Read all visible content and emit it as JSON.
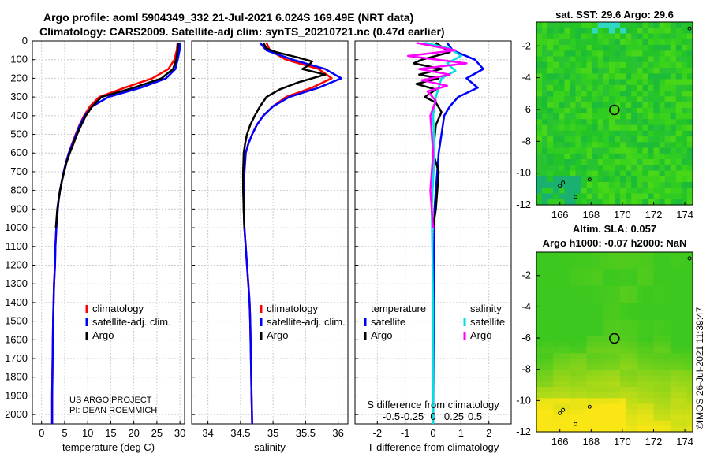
{
  "figure": {
    "title_line1": "Argo profile: aoml 5904349_332 21-Jul-2021 6.024S 169.49E (NRT data)",
    "title_line2": "Climatology: CARS2009. Satellite-adj clim: synTS_20210721.nc (0.47d earlier)",
    "project_line1": "US ARGO PROJECT",
    "project_line2": "PI: DEAN ROEMMICH",
    "imos_stamp": "©IMOS 26-Jul-2021 11:39:47"
  },
  "colors": {
    "climatology": "#ff0000",
    "satellite": "#0000ff",
    "argo": "#000000",
    "sal_argo": "#ff00ff",
    "sal_sat": "#00e0e0",
    "grid": "#cccccc"
  },
  "chart_data": [
    {
      "type": "line",
      "id": "temperature",
      "xlabel": "temperature (deg C)",
      "ylabel": "",
      "xlim": [
        -2,
        31
      ],
      "ylim": [
        0,
        2050
      ],
      "xticks": [
        0,
        5,
        10,
        15,
        20,
        25,
        30
      ],
      "xtick_labels": [
        "0",
        "5",
        "10",
        "15",
        "20",
        "25",
        "30"
      ],
      "yticks": [
        0,
        100,
        200,
        300,
        400,
        500,
        600,
        700,
        800,
        900,
        1000,
        1100,
        1200,
        1300,
        1400,
        1500,
        1600,
        1700,
        1800,
        1900,
        2000
      ],
      "ytick_labels": [
        "0",
        "100",
        "200",
        "300",
        "400",
        "500",
        "600",
        "700",
        "800",
        "900",
        "1000",
        "1100",
        "1200",
        "1300",
        "1400",
        "1500",
        "1600",
        "1700",
        "1800",
        "1900",
        "2000"
      ],
      "legend": [
        "climatology",
        "satellite-adj. clim.",
        "Argo"
      ],
      "series": [
        {
          "name": "climatology",
          "color": "#ff0000",
          "x": [
            29.5,
            29.3,
            28.8,
            27.5,
            24.0,
            18.0,
            12.5,
            10.5,
            9.2,
            8.2,
            7.4,
            6.6,
            5.9,
            5.3,
            4.8,
            4.4,
            4.0,
            3.7,
            3.5,
            3.2,
            3.0,
            2.9,
            2.7,
            2.6,
            2.5,
            2.4,
            2.3,
            2.3
          ],
          "y": [
            10,
            50,
            100,
            150,
            200,
            250,
            300,
            350,
            400,
            450,
            500,
            550,
            600,
            650,
            700,
            750,
            800,
            850,
            900,
            1000,
            1100,
            1200,
            1300,
            1400,
            1500,
            1700,
            1900,
            2050
          ]
        },
        {
          "name": "satellite-adj. clim.",
          "color": "#0000ff",
          "x": [
            30.0,
            29.9,
            29.5,
            29.0,
            27.0,
            21.5,
            14.5,
            11.0,
            9.4,
            8.3,
            7.5,
            6.7,
            5.9,
            5.3,
            4.8,
            4.4,
            4.0,
            3.7,
            3.5,
            3.2,
            3.0,
            2.9,
            2.7,
            2.6,
            2.5,
            2.4,
            2.3,
            2.3
          ],
          "y": [
            10,
            50,
            100,
            150,
            200,
            250,
            300,
            350,
            400,
            450,
            500,
            550,
            600,
            650,
            700,
            750,
            800,
            850,
            900,
            1000,
            1100,
            1200,
            1300,
            1400,
            1500,
            1700,
            1900,
            2050
          ]
        },
        {
          "name": "Argo",
          "color": "#000000",
          "x": [
            29.6,
            29.5,
            29.2,
            28.5,
            26.0,
            20.0,
            13.0,
            11.0,
            9.6,
            8.6,
            7.7,
            6.9,
            6.1,
            5.4,
            4.9,
            4.4,
            4.0,
            3.7,
            3.4,
            3.1
          ],
          "y": [
            10,
            50,
            100,
            150,
            200,
            250,
            300,
            350,
            400,
            450,
            500,
            550,
            600,
            650,
            700,
            750,
            800,
            850,
            900,
            1000
          ]
        }
      ]
    },
    {
      "type": "line",
      "id": "salinity",
      "xlabel": "salinity",
      "xlim": [
        33.75,
        36.15
      ],
      "ylim": [
        0,
        2050
      ],
      "xticks": [
        34,
        34.5,
        35,
        35.5,
        36
      ],
      "xtick_labels": [
        "34",
        "34.5",
        "35",
        "35.5",
        "36"
      ],
      "legend": [
        "climatology",
        "satellite-adj. clim.",
        "Argo"
      ],
      "series": [
        {
          "name": "climatology",
          "color": "#ff0000",
          "x": [
            34.9,
            34.95,
            35.2,
            35.7,
            35.9,
            35.6,
            35.2,
            35.0,
            34.85,
            34.75,
            34.68,
            34.62,
            34.58,
            34.56,
            34.55,
            34.55,
            34.56,
            34.58,
            34.6,
            34.62,
            34.64,
            34.65,
            34.66,
            34.67,
            34.68
          ],
          "y": [
            10,
            50,
            100,
            150,
            200,
            250,
            300,
            350,
            400,
            450,
            500,
            550,
            600,
            700,
            800,
            900,
            1000,
            1100,
            1200,
            1300,
            1400,
            1500,
            1700,
            1900,
            2050
          ]
        },
        {
          "name": "satellite-adj. clim.",
          "color": "#0000ff",
          "x": [
            34.8,
            34.9,
            35.3,
            35.8,
            36.05,
            35.7,
            35.25,
            35.0,
            34.85,
            34.75,
            34.68,
            34.62,
            34.58,
            34.56,
            34.55,
            34.55,
            34.56,
            34.58,
            34.6,
            34.62,
            34.64,
            34.65,
            34.66,
            34.67,
            34.68
          ],
          "y": [
            10,
            50,
            100,
            150,
            200,
            250,
            300,
            350,
            400,
            450,
            500,
            550,
            600,
            700,
            800,
            900,
            1000,
            1100,
            1200,
            1300,
            1400,
            1500,
            1700,
            1900,
            2050
          ]
        },
        {
          "name": "Argo",
          "color": "#000000",
          "x": [
            34.85,
            34.9,
            35.05,
            35.4,
            35.6,
            35.55,
            35.45,
            35.8,
            35.4,
            35.1,
            34.9,
            34.8,
            34.72,
            34.65,
            34.6,
            34.57,
            34.55,
            34.54,
            34.54,
            34.55,
            34.56
          ],
          "y": [
            10,
            40,
            60,
            90,
            110,
            130,
            150,
            180,
            220,
            260,
            300,
            350,
            400,
            450,
            500,
            550,
            600,
            700,
            800,
            900,
            1000
          ]
        }
      ]
    },
    {
      "type": "line",
      "id": "difference",
      "xlabel": "T difference from climatology",
      "xlabel2": "S difference from climatology",
      "xlim": [
        -2.8,
        2.8
      ],
      "ylim": [
        0,
        2050
      ],
      "xticks": [
        -2,
        -1,
        0,
        1,
        2
      ],
      "xtick_labels": [
        "-2",
        "-1",
        "0",
        "1",
        "2"
      ],
      "sticks_labels": [
        "-0.5",
        "-0.25",
        "0",
        "0.25",
        "0.5"
      ],
      "legend_temperature_header": "temperature",
      "legend_salinity_header": "salinity",
      "legend_temperature": [
        "satellite",
        "Argo"
      ],
      "legend_salinity": [
        "satellite",
        "Argo"
      ],
      "series": [
        {
          "name": "T satellite",
          "color": "#0000ff",
          "x": [
            0.5,
            0.7,
            1.5,
            1.8,
            1.2,
            1.6,
            0.9,
            0.6,
            0.4,
            0.3,
            0.2,
            0.15,
            0.1,
            0.05,
            0.05,
            0.03,
            0.02,
            0.02,
            0.01,
            0.0
          ],
          "y": [
            10,
            50,
            100,
            150,
            200,
            250,
            300,
            350,
            400,
            500,
            600,
            700,
            800,
            900,
            1000,
            1200,
            1400,
            1600,
            1800,
            2050
          ]
        },
        {
          "name": "T Argo",
          "color": "#000000",
          "x": [
            0.1,
            0.6,
            -0.4,
            -0.7,
            0.3,
            -0.5,
            0.2,
            -0.6,
            0.1,
            -0.3,
            0.1,
            0.3,
            0.1,
            0.0,
            0.2,
            0.1,
            0.0
          ],
          "y": [
            10,
            60,
            100,
            120,
            150,
            180,
            200,
            230,
            260,
            300,
            330,
            380,
            450,
            600,
            700,
            900,
            1000
          ]
        },
        {
          "name": "S satellite",
          "color": "#00e0e0",
          "x": [
            -0.3,
            0.6,
            1.0,
            0.5,
            0.8,
            0.3,
            0.2,
            0.1,
            0.0,
            0.05,
            -0.05,
            0.0,
            0.0
          ],
          "y": [
            10,
            40,
            80,
            120,
            160,
            200,
            250,
            300,
            400,
            600,
            900,
            1400,
            2050
          ]
        },
        {
          "name": "S Argo",
          "color": "#ff00ff",
          "x": [
            -0.6,
            0.8,
            -0.9,
            1.2,
            -0.5,
            0.6,
            -0.4,
            0.5,
            -0.2,
            0.1,
            -0.1,
            0.0,
            -0.1,
            0.0
          ],
          "y": [
            10,
            50,
            80,
            120,
            150,
            180,
            210,
            240,
            270,
            320,
            400,
            600,
            800,
            1000
          ]
        }
      ]
    },
    {
      "type": "heatmap",
      "id": "sst_map",
      "title": "sat. SST: 29.6 Argo: 29.6",
      "xlim": [
        164.5,
        174.5
      ],
      "ylim": [
        -12,
        -0.5
      ],
      "xtick_labels": [
        "166",
        "168",
        "170",
        "172",
        "174"
      ],
      "ytick_labels": [
        "-2",
        "-4",
        "-6",
        "-8",
        "-10",
        "-12"
      ],
      "argo_location": [
        169.49,
        -6.024
      ]
    },
    {
      "type": "heatmap",
      "id": "sla_map",
      "title_line1": "Altim. SLA: 0.057",
      "title_line2": "Argo h1000: -0.07 h2000: NaN",
      "xlim": [
        164.5,
        174.5
      ],
      "ylim": [
        -12,
        -0.5
      ],
      "xtick_labels": [
        "166",
        "168",
        "170",
        "172",
        "174"
      ],
      "ytick_labels": [
        "-2",
        "-4",
        "-6",
        "-8",
        "-10",
        "-12"
      ],
      "argo_location": [
        169.49,
        -6.024
      ]
    }
  ]
}
